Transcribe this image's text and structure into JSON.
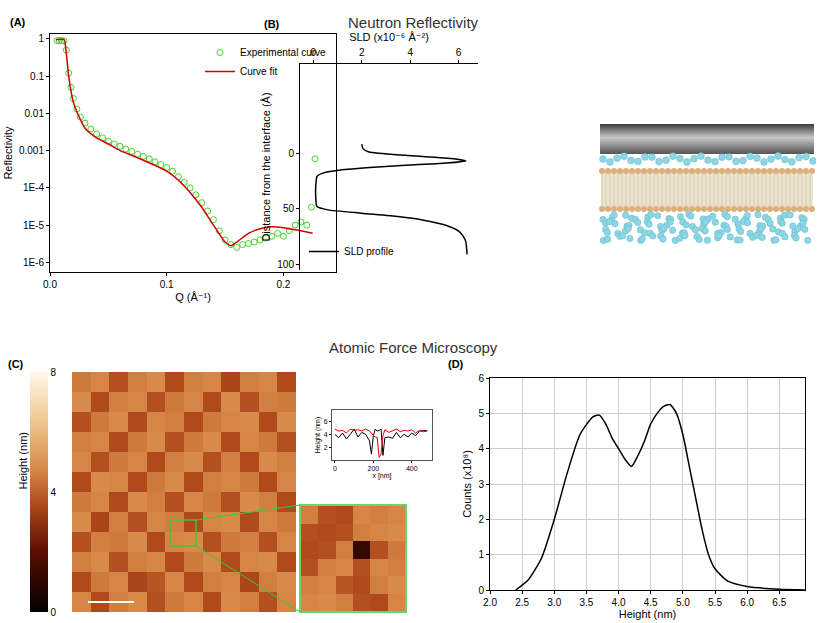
{
  "headings": [
    "Neutron Reflectivity",
    "Atomic Force Microscopy"
  ],
  "chart_data": [
    {
      "panel": "(A)",
      "type": "scatter",
      "xlabel": "Q (Å⁻¹)",
      "ylabel": "Reflectivity",
      "log": "y",
      "legend": "upper right",
      "grid": false,
      "xlim": [
        0,
        0.245
      ],
      "xticks": [
        {
          "value": 0,
          "label": "0.0"
        },
        0.1,
        0.2
      ],
      "ylim": [
        5.5e-07,
        1.35
      ],
      "yticks": [
        {
          "value": 1e-06,
          "label": "1E-6"
        },
        {
          "value": 1e-05,
          "label": "1E-5"
        },
        {
          "value": 0.0001,
          "label": "1E-4"
        },
        0.001,
        0.01,
        0.1,
        1
      ],
      "series": [
        {
          "name": "Experimental curve",
          "type": "scatter",
          "marker": "circle-open",
          "color": "#44d62c",
          "x": [
            0.006,
            0.008,
            0.01,
            0.012,
            0.014,
            0.016,
            0.018,
            0.02,
            0.023,
            0.026,
            0.03,
            0.035,
            0.04,
            0.045,
            0.05,
            0.055,
            0.06,
            0.065,
            0.07,
            0.075,
            0.08,
            0.085,
            0.09,
            0.095,
            0.1,
            0.105,
            0.11,
            0.115,
            0.12,
            0.125,
            0.13,
            0.135,
            0.14,
            0.145,
            0.15,
            0.155,
            0.16,
            0.165,
            0.17,
            0.175,
            0.18,
            0.185,
            0.19,
            0.195,
            0.2,
            0.205,
            0.21,
            0.215,
            0.22,
            0.224,
            0.227
          ],
          "values": [
            0.9,
            0.9,
            0.9,
            0.88,
            0.5,
            0.12,
            0.05,
            0.025,
            0.013,
            0.008,
            0.0055,
            0.0038,
            0.0028,
            0.0022,
            0.0018,
            0.0015,
            0.0013,
            0.0011,
            0.00095,
            0.0008,
            0.0007,
            0.0006,
            0.0005,
            0.00042,
            0.00035,
            0.00028,
            0.0002,
            0.00014,
            0.0001,
            6.5e-05,
            4e-05,
            2.4e-05,
            1.4e-05,
            7e-06,
            4e-06,
            3e-06,
            2.5e-06,
            3e-06,
            3.2e-06,
            3.5e-06,
            4e-06,
            4.5e-06,
            5e-06,
            6e-06,
            5e-06,
            7e-06,
            1e-05,
            1.2e-05,
            1e-05,
            3e-05,
            0.0006
          ]
        },
        {
          "name": "Curve fit",
          "type": "line",
          "color": "#d40000",
          "x": [
            0.005,
            0.012,
            0.014,
            0.016,
            0.02,
            0.025,
            0.03,
            0.04,
            0.05,
            0.06,
            0.07,
            0.08,
            0.09,
            0.1,
            0.11,
            0.12,
            0.13,
            0.14,
            0.15,
            0.155,
            0.16,
            0.17,
            0.18,
            0.19,
            0.2,
            0.21,
            0.22,
            0.225
          ],
          "values": [
            0.95,
            0.95,
            0.4,
            0.1,
            0.02,
            0.008,
            0.004,
            0.0022,
            0.0015,
            0.001,
            0.00075,
            0.00055,
            0.0004,
            0.00028,
            0.00016,
            7.5e-05,
            3e-05,
            1e-05,
            3.5e-06,
            2.8e-06,
            3.5e-06,
            6e-06,
            8e-06,
            9e-06,
            8.5e-06,
            7.5e-06,
            6.5e-06,
            6e-06
          ]
        }
      ]
    },
    {
      "panel": "(B)",
      "type": "line",
      "xlabel": "SLD (x10⁻⁶ Å⁻²)",
      "ylabel": "Distance from the interface (Å)",
      "legend": "lower left",
      "grid": false,
      "xlim": [
        -0.55,
        6.8
      ],
      "xticks": [
        0,
        2,
        4,
        6
      ],
      "ylim": [
        105,
        -80
      ],
      "yticks": [
        0,
        50,
        100
      ],
      "series": [
        {
          "name": "SLD profile",
          "color": "#000000",
          "x": [
            2.0,
            2.05,
            2.3,
            3.8,
            5.8,
            6.3,
            5.5,
            3.0,
            1.2,
            0.4,
            0.15,
            0.1,
            0.1,
            0.15,
            0.6,
            2.0,
            3.5,
            4.5,
            5.5,
            6.0,
            6.2,
            6.3,
            6.35
          ],
          "values": [
            -8,
            -4,
            -1,
            2,
            5,
            7,
            9,
            12,
            15,
            18,
            21,
            30,
            40,
            48,
            51,
            54,
            57,
            60,
            65,
            70,
            75,
            80,
            91
          ]
        }
      ]
    },
    {
      "panel": "(C)",
      "type": "heatmap",
      "colorbar_title": "Height (nm)",
      "tick_labels": false,
      "zlim": [
        0,
        8
      ],
      "zticks": [
        0,
        4,
        8
      ],
      "z": [
        [
          4.7,
          3.6,
          4.6,
          4.8,
          3.7,
          4.5,
          4.7,
          3.6,
          4.8,
          4.6,
          3.7,
          4.7
        ],
        [
          3.6,
          4.5,
          4.7,
          3.5,
          3.8,
          4.7,
          3.6,
          4.6,
          4.7,
          3.5,
          4.6,
          4.8
        ],
        [
          4.6,
          4.8,
          3.7,
          4.6,
          4.7,
          3.6,
          4.5,
          4.8,
          3.6,
          4.7,
          4.8,
          3.6
        ],
        [
          3.7,
          4.6,
          4.5,
          4.8,
          3.6,
          4.7,
          4.8,
          3.7,
          4.5,
          4.6,
          3.7,
          4.7
        ],
        [
          4.8,
          3.5,
          4.6,
          3.7,
          4.7,
          4.6,
          3.6,
          4.7,
          4.8,
          3.6,
          4.7,
          4.5
        ],
        [
          4.5,
          4.7,
          3.6,
          4.8,
          4.6,
          3.7,
          4.7,
          4.5,
          3.7,
          4.8,
          4.6,
          3.6
        ],
        [
          3.6,
          4.8,
          4.7,
          3.6,
          4.5,
          4.8,
          3.6,
          4.6,
          4.7,
          4.5,
          3.6,
          4.7
        ],
        [
          4.7,
          3.7,
          4.5,
          4.7,
          3.6,
          4.6,
          4.8,
          3.7,
          4.6,
          3.6,
          4.8,
          4.6
        ],
        [
          4.6,
          4.7,
          3.6,
          4.5,
          4.8,
          3.7,
          4.5,
          4.8,
          3.6,
          4.7,
          4.5,
          3.7
        ],
        [
          3.7,
          4.5,
          4.8,
          3.6,
          4.7,
          4.6,
          3.6,
          4.5,
          4.7,
          4.8,
          3.6,
          4.8
        ],
        [
          4.8,
          3.6,
          4.6,
          4.7,
          3.7,
          4.5,
          4.7,
          3.6,
          4.8,
          3.7,
          4.6,
          4.5
        ],
        [
          4.5,
          4.7,
          3.7,
          4.6,
          4.8,
          3.6,
          4.6,
          4.7,
          3.5,
          4.6,
          4.7,
          3.6
        ]
      ]
    },
    {
      "type": "line",
      "xlabel": "x [nm]",
      "ylabel": "Height (nm)",
      "grid": false,
      "xlim": [
        -15,
        505
      ],
      "xticks": [
        0,
        200,
        400
      ],
      "ylim": [
        0.1,
        7.7
      ],
      "yticks": [
        2,
        4,
        6
      ],
      "x": [
        0,
        20,
        40,
        60,
        80,
        100,
        120,
        140,
        160,
        180,
        190,
        200,
        210,
        220,
        230,
        240,
        250,
        260,
        280,
        300,
        320,
        340,
        360,
        380,
        400,
        420,
        440,
        460,
        480
      ],
      "series": [
        {
          "color": "#000000",
          "values": [
            4.0,
            3.5,
            4.2,
            3.3,
            4.0,
            4.8,
            3.6,
            4.3,
            4.0,
            3.0,
            1.0,
            3.8,
            4.8,
            4.5,
            4.6,
            4.8,
            0.8,
            3.5,
            3.6,
            3.4,
            4.3,
            3.5,
            4.0,
            3.6,
            4.2,
            3.8,
            4.5,
            4.6,
            4.6
          ]
        },
        {
          "color": "#e00000",
          "values": [
            4.8,
            4.5,
            4.6,
            4.2,
            4.8,
            4.6,
            4.7,
            4.5,
            4.8,
            4.5,
            4.2,
            3.8,
            3.6,
            3.5,
            0.5,
            1.0,
            3.8,
            4.7,
            4.3,
            4.5,
            4.8,
            4.4,
            4.6,
            4.5,
            4.7,
            4.2,
            4.6,
            4.4,
            4.5
          ]
        }
      ]
    },
    {
      "type": "heatmap",
      "tick_labels": false,
      "zlim": [
        0,
        8
      ],
      "z": [
        [
          4.7,
          4.8,
          4.6,
          3.7,
          3.6,
          4.7
        ],
        [
          4.6,
          4.7,
          3.8,
          3.6,
          4.6,
          4.8
        ],
        [
          3.7,
          4.6,
          4.7,
          3.7,
          4.7,
          4.6
        ],
        [
          3.6,
          3.7,
          4.6,
          1.2,
          3.7,
          4.5
        ],
        [
          3.7,
          3.6,
          3.7,
          4.6,
          4.7,
          4.8
        ],
        [
          4.6,
          3.7,
          3.6,
          4.7,
          4.6,
          4.7
        ]
      ]
    },
    {
      "panel": "(D)",
      "type": "line",
      "xlabel": "Height (nm)",
      "ylabel": "Counts (x10⁸)",
      "grid": true,
      "color": "#000000",
      "xlim": [
        2.0,
        6.9
      ],
      "xticks": [
        {
          "value": 2,
          "label": "2.0"
        },
        2.5,
        {
          "value": 3,
          "label": "3.0"
        },
        3.5,
        {
          "value": 4,
          "label": "4.0"
        },
        4.5,
        {
          "value": 5,
          "label": "5.0"
        },
        5.5,
        {
          "value": 6,
          "label": "6.0"
        },
        6.5
      ],
      "ylim": [
        0,
        6
      ],
      "yticks": [
        0,
        1,
        2,
        3,
        4,
        5,
        6
      ],
      "x": [
        2.4,
        2.6,
        2.8,
        3.0,
        3.2,
        3.4,
        3.6,
        3.7,
        3.8,
        3.9,
        4.0,
        4.1,
        4.2,
        4.3,
        4.4,
        4.5,
        4.6,
        4.7,
        4.8,
        4.9,
        5.0,
        5.1,
        5.2,
        5.3,
        5.4,
        5.5,
        5.7,
        6.0,
        6.5,
        6.9
      ],
      "values": [
        0,
        0.3,
        0.9,
        2.0,
        3.3,
        4.4,
        4.9,
        4.95,
        4.7,
        4.3,
        4.0,
        3.7,
        3.5,
        3.8,
        4.2,
        4.7,
        5.0,
        5.2,
        5.25,
        5.0,
        4.4,
        3.5,
        2.6,
        1.7,
        1.0,
        0.6,
        0.25,
        0.1,
        0.02,
        0
      ]
    }
  ]
}
